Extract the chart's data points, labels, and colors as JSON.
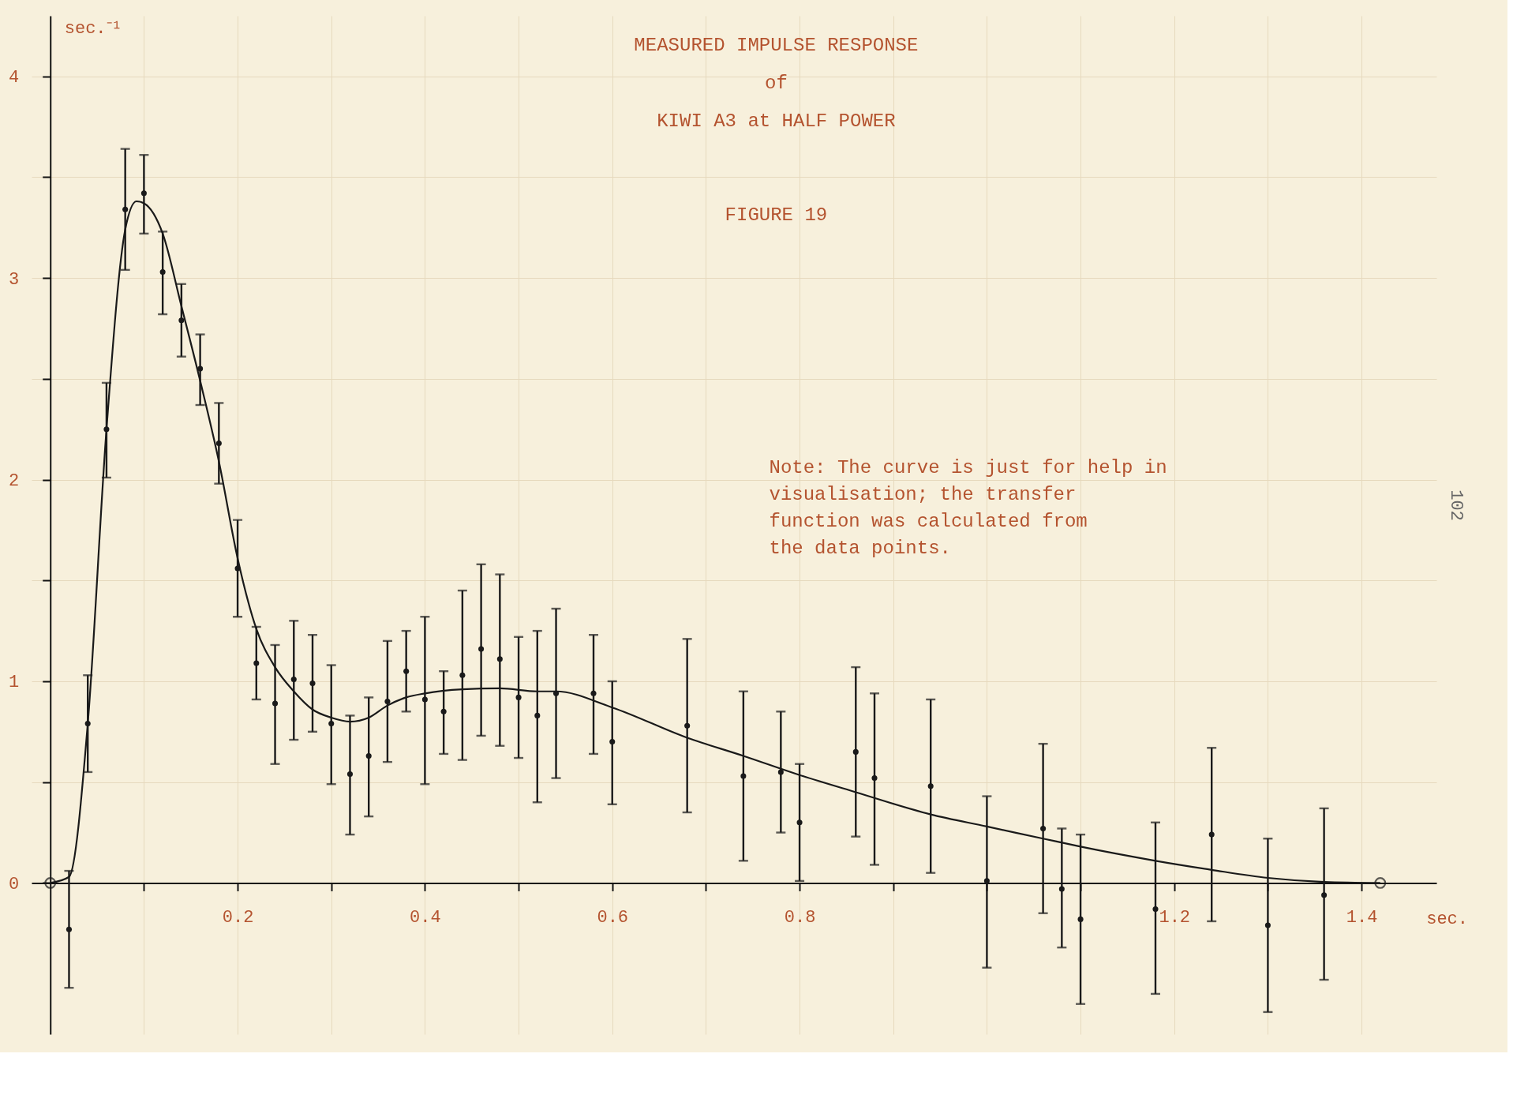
{
  "chart_data": {
    "type": "scatter",
    "title": "MEASURED IMPULSE RESPONSE\nof\nKIWI A3 at HALF POWER",
    "subtitle": "FIGURE 19",
    "xlabel": "sec.",
    "ylabel": "sec.⁻¹",
    "annotations": [
      "Note: The curve is just for help in\n      visualisation; the transfer\n      function was calculated from\n      the data points.",
      "102"
    ],
    "xlim": [
      -0.02,
      1.48
    ],
    "ylim": [
      -0.75,
      4.3
    ],
    "xticks": [
      {
        "value": 0.1,
        "label": null
      },
      0.2,
      {
        "value": 0.3,
        "label": null
      },
      0.4,
      {
        "value": 0.5,
        "label": null
      },
      0.6,
      {
        "value": 0.7,
        "label": null
      },
      0.8,
      {
        "value": 0.9,
        "label": null
      },
      {
        "value": 1.0,
        "label": null
      },
      {
        "value": 1.1,
        "label": null
      },
      1.2,
      {
        "value": 1.3,
        "label": null
      },
      1.4
    ],
    "yticks": [
      0,
      {
        "value": 0.5,
        "label": null
      },
      1,
      {
        "value": 1.5,
        "label": null
      },
      2,
      {
        "value": 2.5,
        "label": null
      },
      3,
      {
        "value": 3.5,
        "label": null
      },
      4
    ],
    "grid": true,
    "series": [
      {
        "color": "#1a1a1a",
        "x": [
          0.02,
          0.04,
          0.06,
          0.08,
          0.1,
          0.12,
          0.14,
          0.16,
          0.18,
          0.2,
          0.22,
          0.24,
          0.26,
          0.28,
          0.3,
          0.32,
          0.34,
          0.36,
          0.38,
          0.4,
          0.42,
          0.44,
          0.46,
          0.48,
          0.5,
          0.52,
          0.54,
          0.58,
          0.6,
          0.68,
          0.74,
          0.78,
          0.8,
          0.86,
          0.88,
          0.94,
          1.0,
          1.06,
          1.08,
          1.1,
          1.18,
          1.24,
          1.3,
          1.36
        ],
        "values": [
          -0.23,
          0.79,
          2.25,
          3.34,
          3.42,
          3.03,
          2.79,
          2.55,
          2.18,
          1.56,
          1.09,
          0.89,
          1.01,
          0.99,
          0.79,
          0.54,
          0.63,
          0.9,
          1.05,
          0.91,
          0.85,
          1.03,
          1.16,
          1.11,
          0.92,
          0.83,
          0.94,
          0.94,
          0.7,
          0.78,
          0.53,
          0.55,
          0.3,
          0.65,
          0.52,
          0.48,
          0.01,
          0.27,
          -0.03,
          -0.18,
          -0.13,
          0.24,
          -0.21,
          -0.06
        ],
        "errors": [
          [
            -0.52,
            0.06
          ],
          [
            0.55,
            1.03
          ],
          [
            2.01,
            2.48
          ],
          [
            3.04,
            3.64
          ],
          [
            3.22,
            3.61
          ],
          [
            2.82,
            3.23
          ],
          [
            2.61,
            2.97
          ],
          [
            2.37,
            2.72
          ],
          [
            1.98,
            2.38
          ],
          [
            1.32,
            1.8
          ],
          [
            0.91,
            1.27
          ],
          [
            0.59,
            1.18
          ],
          [
            0.71,
            1.3
          ],
          [
            0.75,
            1.23
          ],
          [
            0.49,
            1.08
          ],
          [
            0.24,
            0.83
          ],
          [
            0.33,
            0.92
          ],
          [
            0.6,
            1.2
          ],
          [
            0.85,
            1.25
          ],
          [
            0.49,
            1.32
          ],
          [
            0.64,
            1.05
          ],
          [
            0.61,
            1.45
          ],
          [
            0.73,
            1.58
          ],
          [
            0.68,
            1.53
          ],
          [
            0.62,
            1.22
          ],
          [
            0.4,
            1.25
          ],
          [
            0.52,
            1.36
          ],
          [
            0.64,
            1.23
          ],
          [
            0.39,
            1.0
          ],
          [
            0.35,
            1.21
          ],
          [
            0.11,
            0.95
          ],
          [
            0.25,
            0.85
          ],
          [
            0.01,
            0.59
          ],
          [
            0.23,
            1.07
          ],
          [
            0.09,
            0.94
          ],
          [
            0.05,
            0.91
          ],
          [
            -0.42,
            0.43
          ],
          [
            -0.15,
            0.69
          ],
          [
            -0.32,
            0.27
          ],
          [
            -0.6,
            0.24
          ],
          [
            -0.55,
            0.3
          ],
          [
            -0.19,
            0.67
          ],
          [
            -0.64,
            0.22
          ],
          [
            -0.48,
            0.37
          ]
        ]
      },
      {
        "type": "line",
        "color": "#1a1a1a",
        "line_style": "solid",
        "marker": "none",
        "x": [
          0,
          0.02,
          0.04,
          0.06,
          0.08,
          0.092,
          0.1,
          0.12,
          0.14,
          0.16,
          0.18,
          0.2,
          0.22,
          0.24,
          0.26,
          0.28,
          0.3,
          0.32,
          0.34,
          0.36,
          0.38,
          0.4,
          0.44,
          0.48,
          0.52,
          0.54,
          0.6,
          0.68,
          0.74,
          0.8,
          0.86,
          0.94,
          1.0,
          1.06,
          1.1,
          1.18,
          1.24,
          1.3,
          1.36,
          1.42
        ],
        "values": [
          0,
          0.03,
          0.79,
          2.25,
          3.24,
          3.38,
          3.37,
          3.22,
          2.86,
          2.49,
          2.09,
          1.61,
          1.26,
          1.07,
          0.95,
          0.86,
          0.82,
          0.8,
          0.82,
          0.88,
          0.92,
          0.94,
          0.96,
          0.965,
          0.95,
          0.95,
          0.87,
          0.72,
          0.63,
          0.535,
          0.45,
          0.34,
          0.28,
          0.22,
          0.18,
          0.11,
          0.065,
          0.025,
          0.005,
          0
        ]
      },
      {
        "type": "scatter",
        "color": "#1a1a1a",
        "marker": "circle",
        "x": [
          0,
          1.42
        ],
        "values": [
          0,
          0
        ]
      }
    ]
  }
}
